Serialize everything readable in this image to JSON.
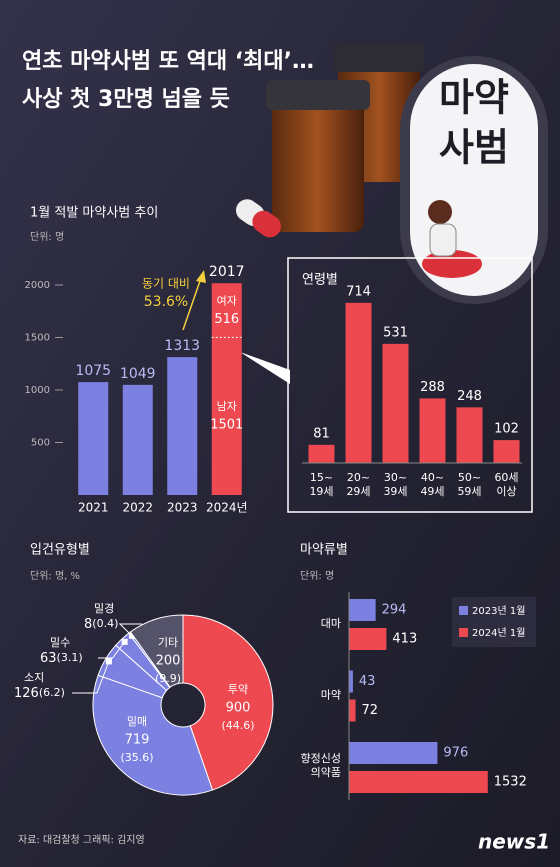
{
  "header": {
    "title": [
      "연초 마약사범 또 역대 ‘최대’…",
      "사상 첫 3만명 넘을 듯"
    ],
    "badge": [
      "마약",
      "사범"
    ]
  },
  "chart_data": [
    {
      "type": "bar",
      "title": "1월 적발 마약사범 추이",
      "unit": "단위: 명",
      "categories": [
        "2021",
        "2022",
        "2023",
        "2024년"
      ],
      "values": [
        1075,
        1049,
        1313,
        null
      ],
      "color": "#7c80e0",
      "stacked": {
        "color": "#ee4850",
        "segments": [
          {
            "name": "남자",
            "value": 1501
          },
          {
            "name": "여자",
            "value": 516
          }
        ],
        "total": 2017
      },
      "annotation": {
        "label": "동기 대비",
        "value_label": "53.6%",
        "color": "#f5cf3d"
      },
      "ylim": [
        0,
        2200
      ],
      "yticks": [
        500,
        1000,
        1500,
        2000
      ]
    },
    {
      "type": "bar",
      "title": "연령별",
      "categories": [
        "15~\n19세",
        "20~\n29세",
        "30~\n39세",
        "40~\n49세",
        "50~\n59세",
        "60세\n이상"
      ],
      "values": [
        81,
        714,
        531,
        288,
        248,
        102
      ],
      "color": "#ee4850",
      "ylim": [
        0,
        780
      ]
    },
    {
      "type": "pie",
      "title": "입건유형별",
      "unit": "단위: 명, %",
      "categories": [
        "투약",
        "밀매",
        "소지",
        "밀수",
        "밀경",
        "기타"
      ],
      "values": [
        44.6,
        35.6,
        6.2,
        3.1,
        0.4,
        9.9
      ],
      "value_labels": [
        "(44.6)",
        "(35.6)",
        "(6.2)",
        "(3.1)",
        "(0.4)",
        "(9.9)"
      ],
      "counts": [
        900,
        719,
        126,
        63,
        8,
        200
      ],
      "colors": [
        "#ee4850",
        "#7c80e0",
        "#7c80e0",
        "#7c80e0",
        "#7c80e0",
        "#54536a"
      ]
    },
    {
      "type": "hbar",
      "title": "마약류별",
      "unit": "단위: 명",
      "categories": [
        "대마",
        "마약",
        "향정신성\n의약품"
      ],
      "series": [
        {
          "name": "2023년 1월",
          "color": "#7c80e0",
          "values": [
            294,
            43,
            976
          ]
        },
        {
          "name": "2024년 1월",
          "color": "#ee4850",
          "values": [
            413,
            72,
            1532
          ]
        }
      ],
      "xlim": [
        0,
        1700
      ],
      "legend": "top-right"
    }
  ],
  "footer": {
    "source": "자료: 대검찰청  그래픽: 김지영",
    "logo": "news1"
  }
}
